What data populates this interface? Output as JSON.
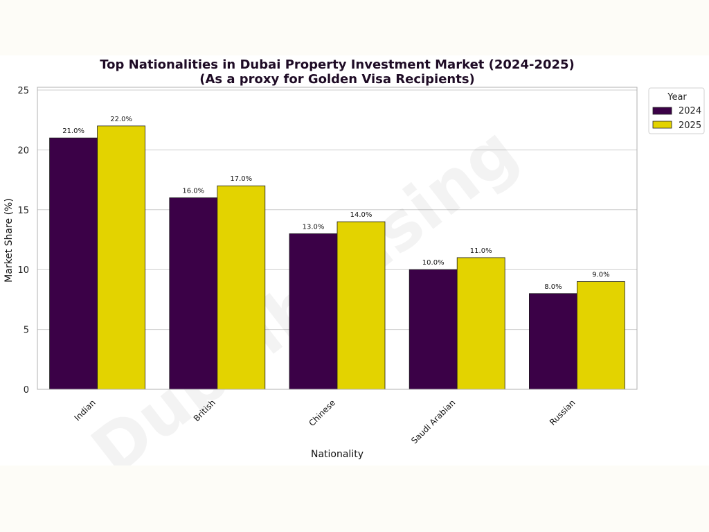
{
  "watermark": "Dubaihousing",
  "colors": {
    "y2024": "#3b0147",
    "y2025": "#e3d300",
    "grid": "#cccccc",
    "frame": "#b0b0b0"
  },
  "chart_data": {
    "type": "bar",
    "title": "Top Nationalities in Dubai Property Investment Market (2024-2025)",
    "subtitle": "(As a proxy for Golden Visa Recipients)",
    "xlabel": "Nationality",
    "ylabel": "Market Share (%)",
    "ylim": [
      0,
      25
    ],
    "yticks": [
      "0",
      "5",
      "10",
      "15",
      "20",
      "25"
    ],
    "grid": true,
    "legend": {
      "title": "Year",
      "placement": "outside-top-right"
    },
    "categories": [
      "Indian",
      "British",
      "Chinese",
      "Saudi Arabian",
      "Russian"
    ],
    "series": [
      {
        "name": "2024",
        "values": [
          21.0,
          16.0,
          13.0,
          10.0,
          8.0
        ],
        "labels": [
          "21.0%",
          "16.0%",
          "13.0%",
          "10.0%",
          "8.0%"
        ]
      },
      {
        "name": "2025",
        "values": [
          22.0,
          17.0,
          14.0,
          11.0,
          9.0
        ],
        "labels": [
          "22.0%",
          "17.0%",
          "14.0%",
          "11.0%",
          "9.0%"
        ]
      }
    ]
  }
}
